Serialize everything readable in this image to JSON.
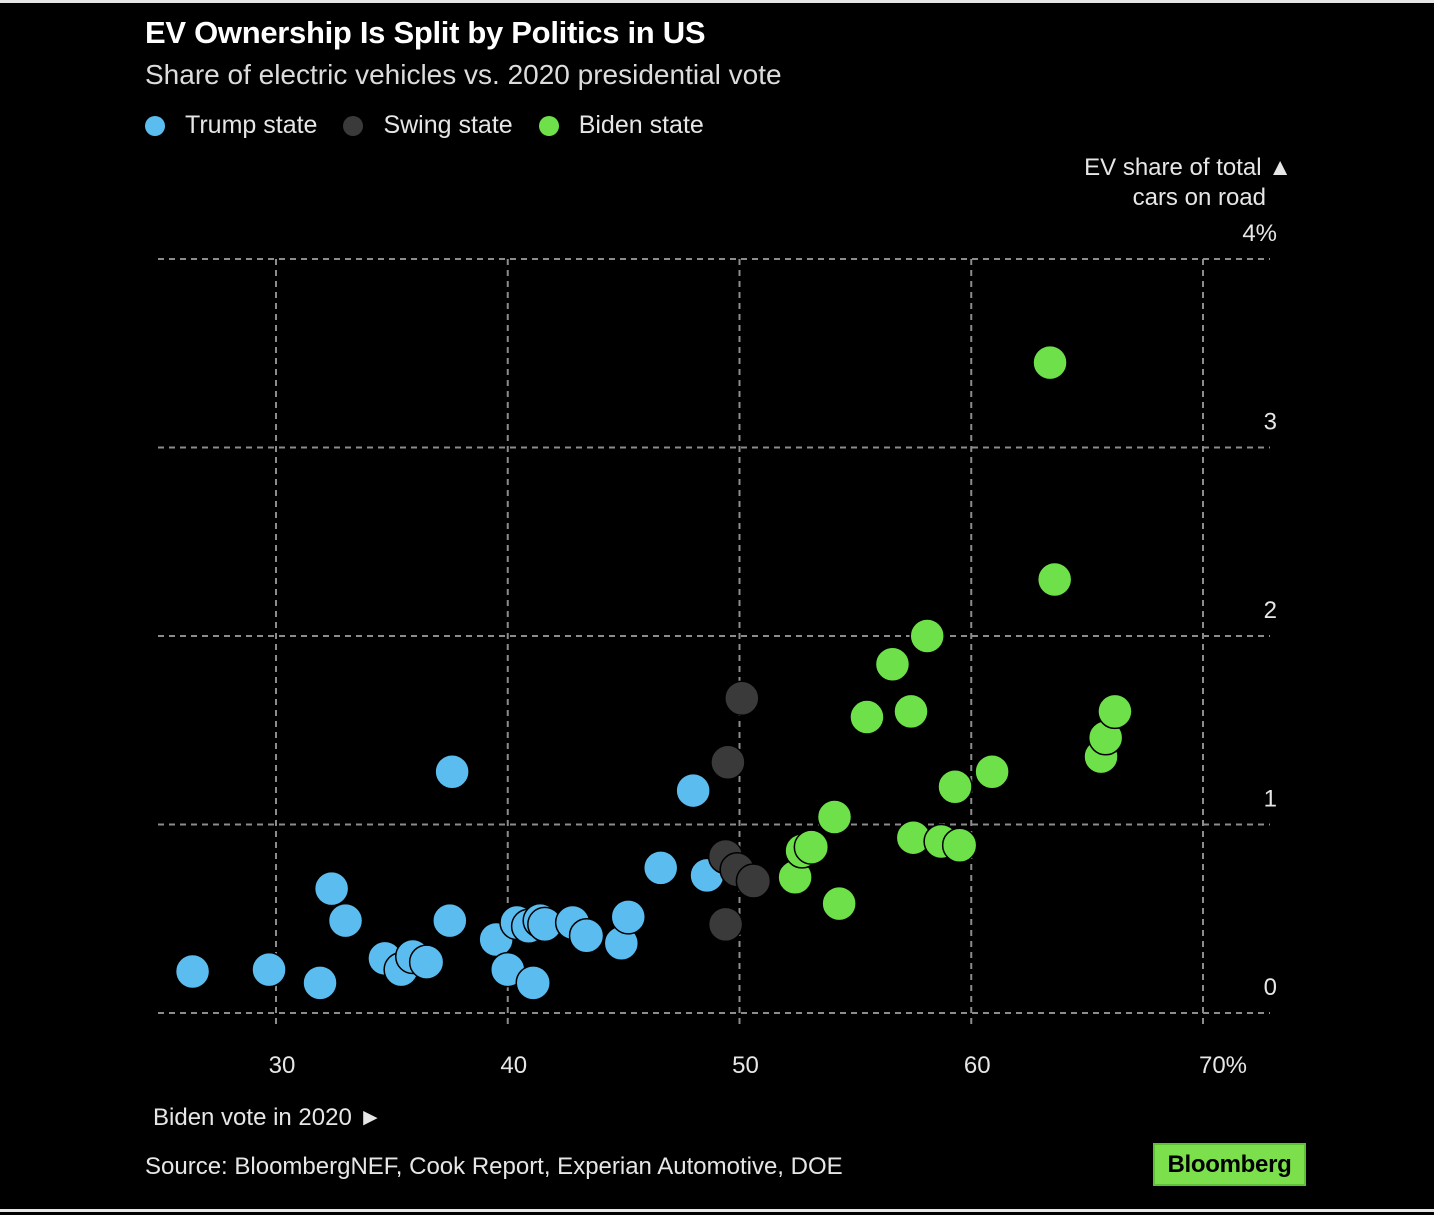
{
  "title": "EV Ownership Is Split by Politics in US",
  "subtitle": "Share of electric vehicles vs. 2020 presidential vote",
  "legend": [
    {
      "label": "Trump state",
      "color": "#5bbcf0"
    },
    {
      "label": "Swing state",
      "color": "#3a3a3a"
    },
    {
      "label": "Biden state",
      "color": "#6ee04a"
    }
  ],
  "source": "Source: BloombergNEF, Cook Report, Experian Automotive, DOE",
  "brand": "Bloomberg",
  "chart_data": {
    "type": "scatter",
    "xlabel": "Biden vote in 2020 ►",
    "ylabel_line1": "EV share of total ▲",
    "ylabel_line2": "cars on road",
    "xlim": [
      25,
      72.5
    ],
    "ylim": [
      -0.05,
      4.1
    ],
    "xticks": [
      30,
      40,
      50,
      60,
      70
    ],
    "xtick_labels": [
      "30",
      "40",
      "50",
      "60",
      "70%"
    ],
    "yticks": [
      0,
      1,
      2,
      3,
      4
    ],
    "ytick_labels": [
      "0",
      "1",
      "2",
      "3",
      "4%"
    ],
    "grid": true,
    "series": [
      {
        "name": "Trump state",
        "color": "#5bbcf0",
        "points": [
          [
            26.4,
            0.22
          ],
          [
            29.7,
            0.23
          ],
          [
            31.9,
            0.16
          ],
          [
            32.4,
            0.66
          ],
          [
            33.0,
            0.49
          ],
          [
            34.7,
            0.29
          ],
          [
            35.4,
            0.23
          ],
          [
            35.9,
            0.3
          ],
          [
            36.5,
            0.27
          ],
          [
            37.5,
            0.49
          ],
          [
            37.6,
            1.28
          ],
          [
            39.5,
            0.39
          ],
          [
            40.0,
            0.23
          ],
          [
            40.4,
            0.48
          ],
          [
            40.9,
            0.46
          ],
          [
            41.1,
            0.16
          ],
          [
            41.4,
            0.49
          ],
          [
            41.6,
            0.47
          ],
          [
            42.8,
            0.48
          ],
          [
            43.4,
            0.41
          ],
          [
            44.9,
            0.37
          ],
          [
            45.2,
            0.51
          ],
          [
            46.6,
            0.77
          ],
          [
            48.0,
            1.18
          ],
          [
            48.6,
            0.73
          ]
        ]
      },
      {
        "name": "Swing state",
        "color": "#3a3a3a",
        "points": [
          [
            49.4,
            0.83
          ],
          [
            49.9,
            0.76
          ],
          [
            49.4,
            0.47
          ],
          [
            49.5,
            1.33
          ],
          [
            50.1,
            1.67
          ],
          [
            50.6,
            0.7
          ]
        ]
      },
      {
        "name": "Biden state",
        "color": "#6ee04a",
        "points": [
          [
            52.4,
            0.72
          ],
          [
            52.7,
            0.86
          ],
          [
            53.1,
            0.88
          ],
          [
            54.1,
            1.04
          ],
          [
            54.3,
            0.58
          ],
          [
            55.5,
            1.57
          ],
          [
            56.6,
            1.85
          ],
          [
            57.4,
            1.6
          ],
          [
            57.5,
            0.93
          ],
          [
            58.1,
            2.0
          ],
          [
            58.7,
            0.91
          ],
          [
            59.3,
            1.2
          ],
          [
            59.5,
            0.89
          ],
          [
            60.9,
            1.28
          ],
          [
            63.4,
            3.45
          ],
          [
            63.6,
            2.3
          ],
          [
            65.6,
            1.36
          ],
          [
            65.8,
            1.46
          ],
          [
            66.2,
            1.6
          ]
        ]
      }
    ]
  }
}
